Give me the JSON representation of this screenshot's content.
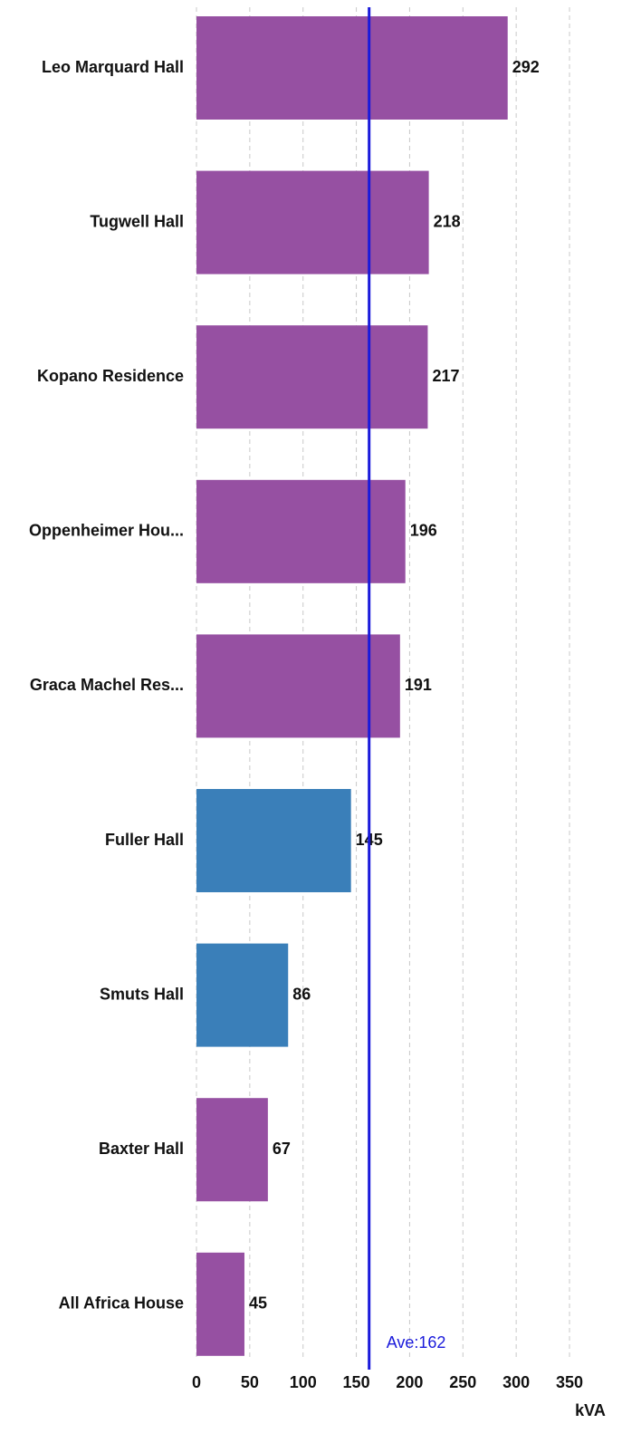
{
  "chart_data": {
    "type": "bar",
    "orientation": "horizontal",
    "categories": [
      "Leo Marquard Hall",
      "Tugwell Hall",
      "Kopano Residence",
      "Oppenheimer Hou...",
      "Graca Machel Res...",
      "Fuller Hall",
      "Smuts Hall",
      "Baxter Hall",
      "All Africa House"
    ],
    "values": [
      292,
      218,
      217,
      196,
      191,
      145,
      86,
      67,
      45
    ],
    "colors": [
      "#9650a2",
      "#9650a2",
      "#9650a2",
      "#9650a2",
      "#9650a2",
      "#3a7fb9",
      "#3a7fb9",
      "#9650a2",
      "#9650a2"
    ],
    "xlim": [
      0,
      350
    ],
    "xticks": [
      0,
      50,
      100,
      150,
      200,
      250,
      300,
      350
    ],
    "x_label": "kVA",
    "grid": true,
    "average": {
      "value": 162,
      "label": "Ave:162",
      "color": "#1a1adb"
    }
  }
}
